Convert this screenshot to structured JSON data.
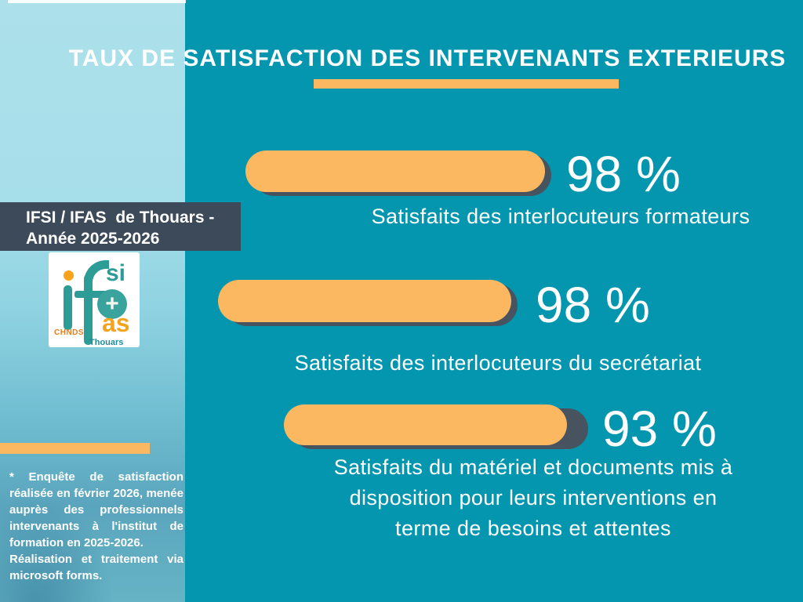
{
  "slide": {
    "title": "TAUX DE SATISFACTION DES INTERVENANTS EXTERIEURS"
  },
  "sidebar": {
    "org_box": "IFSI / IFAS  de Thouars -\nAnnée 2025-2026",
    "logo": {
      "if_monogram": "if",
      "si": "si",
      "plus": "+",
      "as": "as",
      "chnds": "CHNDS",
      "thouars": "Thouars (79)"
    },
    "footnote_line1": "* Enquête de satisfaction réalisée en février 2026, menée auprès des professionnels intervenants à l'institut de formation en 2025-2026.",
    "footnote_line2": "Réalisation et traitement via microsoft forms."
  },
  "chart_data": {
    "type": "bar",
    "title": "TAUX DE SATISFACTION DES INTERVENANTS EXTERIEURS",
    "unit": "%",
    "xlim": [
      0,
      100
    ],
    "categories": [
      "Satisfaits des interlocuteurs formateurs",
      "Satisfaits des interlocuteurs du secrétariat",
      "Satisfaits du matériel et documents mis à\ndisposition pour leurs interventions en\nterme de besoins et attentes"
    ],
    "values": [
      98,
      98,
      93
    ],
    "value_labels": [
      "98 %",
      "98 %",
      "93 %"
    ],
    "bar_color": "#fbb860",
    "track_color": "#47535f",
    "legend": "none",
    "grid": "off"
  },
  "colors": {
    "background": "#0496ae",
    "sidebar_light": "#a6dee9",
    "accent_orange": "#fbb860",
    "dark_slate": "#3d4a59",
    "text": "#ffffff",
    "logo_teal": "#2d9b96",
    "logo_orange": "#f5a31d"
  }
}
